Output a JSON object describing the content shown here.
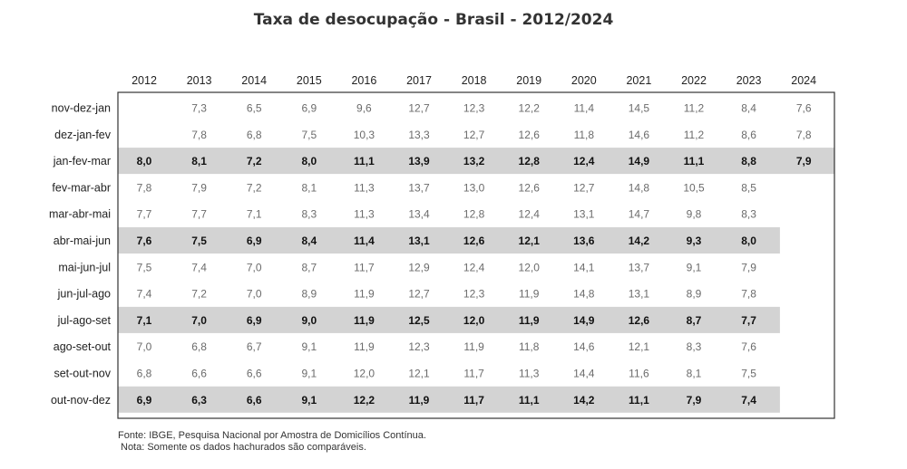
{
  "chart_data": {
    "type": "table",
    "title": "Taxa de desocupação - Brasil - 2012/2024",
    "years": [
      "2012",
      "2013",
      "2014",
      "2015",
      "2016",
      "2017",
      "2018",
      "2019",
      "2020",
      "2021",
      "2022",
      "2023",
      "2024"
    ],
    "rows": [
      {
        "label": "nov-dez-jan",
        "highlight": false,
        "values": [
          "",
          "7,3",
          "6,5",
          "6,9",
          "9,6",
          "12,7",
          "12,3",
          "12,2",
          "11,4",
          "14,5",
          "11,2",
          "8,4",
          "7,6"
        ]
      },
      {
        "label": "dez-jan-fev",
        "highlight": false,
        "values": [
          "",
          "7,8",
          "6,8",
          "7,5",
          "10,3",
          "13,3",
          "12,7",
          "12,6",
          "11,8",
          "14,6",
          "11,2",
          "8,6",
          "7,8"
        ]
      },
      {
        "label": "jan-fev-mar",
        "highlight": true,
        "values": [
          "8,0",
          "8,1",
          "7,2",
          "8,0",
          "11,1",
          "13,9",
          "13,2",
          "12,8",
          "12,4",
          "14,9",
          "11,1",
          "8,8",
          "7,9"
        ]
      },
      {
        "label": "fev-mar-abr",
        "highlight": false,
        "values": [
          "7,8",
          "7,9",
          "7,2",
          "8,1",
          "11,3",
          "13,7",
          "13,0",
          "12,6",
          "12,7",
          "14,8",
          "10,5",
          "8,5",
          ""
        ]
      },
      {
        "label": "mar-abr-mai",
        "highlight": false,
        "values": [
          "7,7",
          "7,7",
          "7,1",
          "8,3",
          "11,3",
          "13,4",
          "12,8",
          "12,4",
          "13,1",
          "14,7",
          "9,8",
          "8,3",
          ""
        ]
      },
      {
        "label": "abr-mai-jun",
        "highlight": true,
        "values": [
          "7,6",
          "7,5",
          "6,9",
          "8,4",
          "11,4",
          "13,1",
          "12,6",
          "12,1",
          "13,6",
          "14,2",
          "9,3",
          "8,0",
          ""
        ]
      },
      {
        "label": "mai-jun-jul",
        "highlight": false,
        "values": [
          "7,5",
          "7,4",
          "7,0",
          "8,7",
          "11,7",
          "12,9",
          "12,4",
          "12,0",
          "14,1",
          "13,7",
          "9,1",
          "7,9",
          ""
        ]
      },
      {
        "label": "jun-jul-ago",
        "highlight": false,
        "values": [
          "7,4",
          "7,2",
          "7,0",
          "8,9",
          "11,9",
          "12,7",
          "12,3",
          "11,9",
          "14,8",
          "13,1",
          "8,9",
          "7,8",
          ""
        ]
      },
      {
        "label": "jul-ago-set",
        "highlight": true,
        "values": [
          "7,1",
          "7,0",
          "6,9",
          "9,0",
          "11,9",
          "12,5",
          "12,0",
          "11,9",
          "14,9",
          "12,6",
          "8,7",
          "7,7",
          ""
        ]
      },
      {
        "label": "ago-set-out",
        "highlight": false,
        "values": [
          "7,0",
          "6,8",
          "6,7",
          "9,1",
          "11,9",
          "12,3",
          "11,9",
          "11,8",
          "14,6",
          "12,1",
          "8,3",
          "7,6",
          ""
        ]
      },
      {
        "label": "set-out-nov",
        "highlight": false,
        "values": [
          "6,8",
          "6,6",
          "6,6",
          "9,1",
          "12,0",
          "12,1",
          "11,7",
          "11,3",
          "14,4",
          "11,6",
          "8,1",
          "7,5",
          ""
        ]
      },
      {
        "label": "out-nov-dez",
        "highlight": true,
        "values": [
          "6,9",
          "6,3",
          "6,6",
          "9,1",
          "12,2",
          "11,9",
          "11,7",
          "11,1",
          "14,2",
          "11,1",
          "7,9",
          "7,4",
          ""
        ]
      }
    ],
    "highlight_color": "#d3d3d3"
  },
  "footnotes": {
    "source": "Fonte: IBGE, Pesquisa Nacional por Amostra de Domicílios Contínua.",
    "note": "Nota: Somente os dados hachurados são comparáveis."
  }
}
